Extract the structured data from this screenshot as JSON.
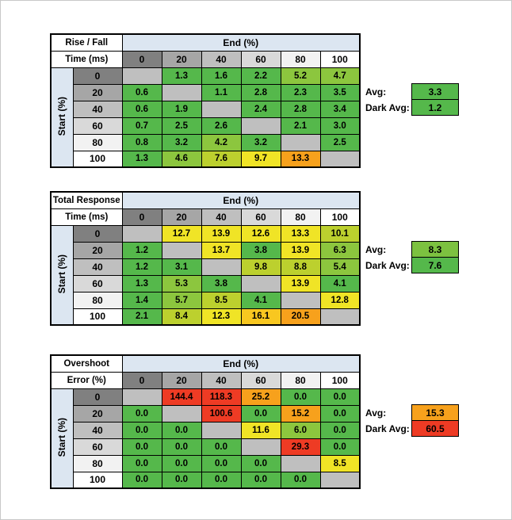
{
  "labels": {
    "avg": "Avg:",
    "dark_avg": "Dark Avg:"
  },
  "colors": {
    "header_accent": "#dce6f1",
    "diagonal_blank": "#bfbfbf",
    "grid_border": "#000000",
    "gray_scale": [
      "#808080",
      "#a6a6a6",
      "#bfbfbf",
      "#d9d9d9",
      "#f2f2f2",
      "#ffffff"
    ]
  },
  "chart_data": [
    {
      "type": "heatmap",
      "name": "rise-fall-time",
      "title": "Rise / Fall Time (ms)",
      "title_lines": [
        "Rise / Fall",
        "Time (ms)"
      ],
      "xlabel": "End (%)",
      "ylabel": "Start (%)",
      "x_ticks": [
        "0",
        "20",
        "40",
        "60",
        "80",
        "100"
      ],
      "y_ticks": [
        "0",
        "20",
        "40",
        "60",
        "80",
        "100"
      ],
      "values": [
        [
          null,
          1.3,
          1.6,
          2.2,
          5.2,
          4.7
        ],
        [
          0.6,
          null,
          1.1,
          2.8,
          2.3,
          3.5
        ],
        [
          0.6,
          1.9,
          null,
          2.4,
          2.8,
          3.4
        ],
        [
          0.7,
          2.5,
          2.6,
          null,
          2.1,
          3.0
        ],
        [
          0.8,
          3.2,
          4.2,
          3.2,
          null,
          2.5
        ],
        [
          1.3,
          4.6,
          7.6,
          9.7,
          13.3,
          null
        ]
      ],
      "cell_colors": [
        [
          null,
          "#55b84b",
          "#55b84b",
          "#55b84b",
          "#8cc63e",
          "#8cc63e"
        ],
        [
          "#55b84b",
          null,
          "#55b84b",
          "#55b84b",
          "#55b84b",
          "#55b84b"
        ],
        [
          "#55b84b",
          "#55b84b",
          null,
          "#55b84b",
          "#55b84b",
          "#55b84b"
        ],
        [
          "#55b84b",
          "#55b84b",
          "#55b84b",
          null,
          "#55b84b",
          "#55b84b"
        ],
        [
          "#55b84b",
          "#55b84b",
          "#8cc63e",
          "#55b84b",
          null,
          "#55b84b"
        ],
        [
          "#55b84b",
          "#8cc63e",
          "#bcd02e",
          "#f0e426",
          "#f7a11c",
          null
        ]
      ],
      "avg": {
        "value": 3.3,
        "color": "#55b84b"
      },
      "dark_avg": {
        "value": 1.2,
        "color": "#55b84b"
      }
    },
    {
      "type": "heatmap",
      "name": "total-response-time",
      "title": "Total Response Time (ms)",
      "title_lines": [
        "Total Response",
        "Time (ms)"
      ],
      "xlabel": "End (%)",
      "ylabel": "Start (%)",
      "x_ticks": [
        "0",
        "20",
        "40",
        "60",
        "80",
        "100"
      ],
      "y_ticks": [
        "0",
        "20",
        "40",
        "60",
        "80",
        "100"
      ],
      "values": [
        [
          null,
          12.7,
          13.9,
          12.6,
          13.3,
          10.1
        ],
        [
          1.2,
          null,
          13.7,
          3.8,
          13.9,
          6.3
        ],
        [
          1.2,
          3.1,
          null,
          9.8,
          8.8,
          5.4
        ],
        [
          1.3,
          5.3,
          3.8,
          null,
          13.9,
          4.1
        ],
        [
          1.4,
          5.7,
          8.5,
          4.1,
          null,
          12.8
        ],
        [
          2.1,
          8.4,
          12.3,
          16.1,
          20.5,
          null
        ]
      ],
      "cell_colors": [
        [
          null,
          "#f0e426",
          "#f0e426",
          "#f0e426",
          "#f0e426",
          "#bcd02e"
        ],
        [
          "#55b84b",
          null,
          "#f0e426",
          "#55b84b",
          "#f0e426",
          "#8cc63e"
        ],
        [
          "#55b84b",
          "#55b84b",
          null,
          "#bcd02e",
          "#bcd02e",
          "#8cc63e"
        ],
        [
          "#55b84b",
          "#8cc63e",
          "#55b84b",
          null,
          "#f0e426",
          "#55b84b"
        ],
        [
          "#55b84b",
          "#8cc63e",
          "#bcd02e",
          "#55b84b",
          null,
          "#f0e426"
        ],
        [
          "#55b84b",
          "#bcd02e",
          "#f0e426",
          "#f8c720",
          "#f7a11c",
          null
        ]
      ],
      "avg": {
        "value": 8.3,
        "color": "#7cc140"
      },
      "dark_avg": {
        "value": 7.6,
        "color": "#55b84b"
      }
    },
    {
      "type": "heatmap",
      "name": "overshoot-error",
      "title": "Overshoot Error (%)",
      "title_lines": [
        "Overshoot",
        "Error (%)"
      ],
      "xlabel": "End (%)",
      "ylabel": "Start (%)",
      "x_ticks": [
        "0",
        "20",
        "40",
        "60",
        "80",
        "100"
      ],
      "y_ticks": [
        "0",
        "20",
        "40",
        "60",
        "80",
        "100"
      ],
      "values": [
        [
          null,
          144.4,
          118.3,
          25.2,
          0.0,
          0.0
        ],
        [
          0.0,
          null,
          100.6,
          0.0,
          15.2,
          0.0
        ],
        [
          0.0,
          0.0,
          null,
          11.6,
          6.0,
          0.0
        ],
        [
          0.0,
          0.0,
          0.0,
          null,
          29.3,
          0.0
        ],
        [
          0.0,
          0.0,
          0.0,
          0.0,
          null,
          8.5
        ],
        [
          0.0,
          0.0,
          0.0,
          0.0,
          0.0,
          null
        ]
      ],
      "cell_colors": [
        [
          null,
          "#ee3b24",
          "#ee3b24",
          "#f7a11c",
          "#55b84b",
          "#55b84b"
        ],
        [
          "#55b84b",
          null,
          "#ee3b24",
          "#55b84b",
          "#f7a11c",
          "#55b84b"
        ],
        [
          "#55b84b",
          "#55b84b",
          null,
          "#f0e426",
          "#8cc63e",
          "#55b84b"
        ],
        [
          "#55b84b",
          "#55b84b",
          "#55b84b",
          null,
          "#ee3b24",
          "#55b84b"
        ],
        [
          "#55b84b",
          "#55b84b",
          "#55b84b",
          "#55b84b",
          null,
          "#f0e426"
        ],
        [
          "#55b84b",
          "#55b84b",
          "#55b84b",
          "#55b84b",
          "#55b84b",
          null
        ]
      ],
      "avg": {
        "value": 15.3,
        "color": "#f7a11c"
      },
      "dark_avg": {
        "value": 60.5,
        "color": "#ee3b24"
      }
    }
  ]
}
